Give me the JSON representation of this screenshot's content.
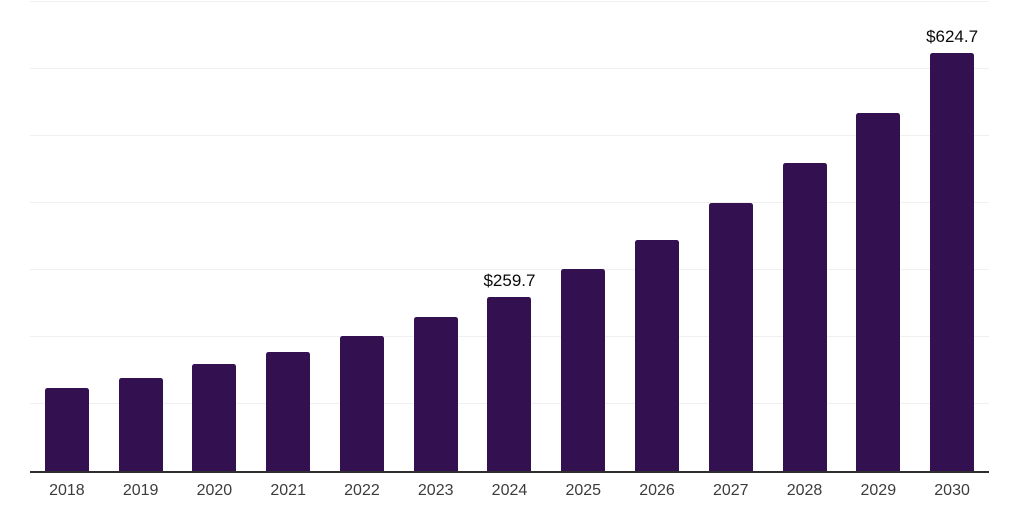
{
  "page": {
    "background": "#ffffff"
  },
  "chart_data": {
    "type": "bar",
    "title": "",
    "xlabel": "",
    "ylabel": "",
    "categories": [
      "2018",
      "2019",
      "2020",
      "2021",
      "2022",
      "2023",
      "2024",
      "2025",
      "2026",
      "2027",
      "2028",
      "2029",
      "2030"
    ],
    "values": [
      124.3,
      138.4,
      159.8,
      177.2,
      201.6,
      229.5,
      259.7,
      301.0,
      345.0,
      400.0,
      460.5,
      534.3,
      624.7
    ],
    "data_labels": {
      "2024": "$259.7",
      "2030": "$624.7"
    },
    "ylim": [
      0,
      700
    ],
    "grid_step": 100,
    "grid": true,
    "legend": "none",
    "bar_color": "#331150",
    "axis_line_color": "#2e2e2e",
    "grid_color": "#f0f0f1",
    "tick_label_color": "#3c3c3c",
    "value_label_color": "#0a0a0a"
  }
}
